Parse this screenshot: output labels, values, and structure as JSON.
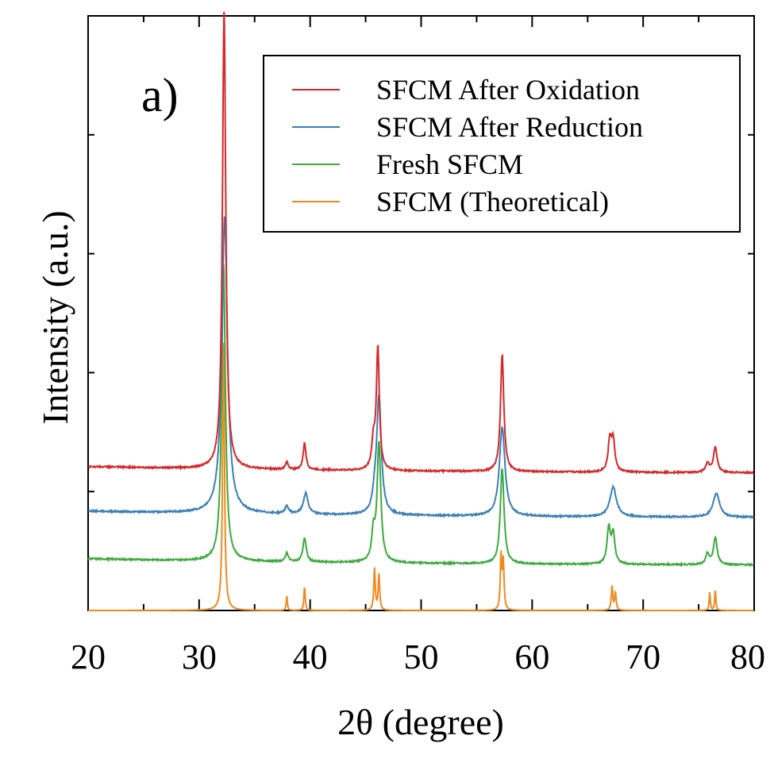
{
  "chart_data": {
    "type": "line",
    "panel_label": "a)",
    "xlabel": "2θ (degree)",
    "ylabel": "Intensity (a.u.)",
    "xlim": [
      20,
      80
    ],
    "ylim": [
      0,
      1.0
    ],
    "xticks": [
      20,
      30,
      40,
      50,
      60,
      70,
      80
    ],
    "xticklabels": [
      "20",
      "30",
      "40",
      "50",
      "60",
      "70",
      "80"
    ],
    "grid": false,
    "legend": {
      "position": "top-right"
    },
    "series": [
      {
        "name": "SFCM After Oxidation",
        "color": "#d62728",
        "baseline": 0.23,
        "peaks": [
          [
            32.25,
            0.77,
            0.18
          ],
          [
            37.9,
            0.012,
            0.15
          ],
          [
            39.5,
            0.045,
            0.15
          ],
          [
            45.7,
            0.045,
            0.18
          ],
          [
            46.1,
            0.205,
            0.16
          ],
          [
            57.3,
            0.197,
            0.18
          ],
          [
            67.0,
            0.052,
            0.18
          ],
          [
            67.3,
            0.05,
            0.18
          ],
          [
            75.8,
            0.015,
            0.2
          ],
          [
            76.5,
            0.042,
            0.2
          ]
        ]
      },
      {
        "name": "SFCM After Reduction",
        "color": "#3a7fb6",
        "baseline": 0.155,
        "peaks": [
          [
            32.3,
            0.5,
            0.3
          ],
          [
            37.9,
            0.012,
            0.2
          ],
          [
            39.6,
            0.035,
            0.25
          ],
          [
            45.8,
            0.02,
            0.2
          ],
          [
            46.2,
            0.2,
            0.25
          ],
          [
            57.3,
            0.15,
            0.3
          ],
          [
            67.3,
            0.05,
            0.35
          ],
          [
            76.6,
            0.04,
            0.35
          ]
        ]
      },
      {
        "name": "Fresh SFCM",
        "color": "#3daa3d",
        "baseline": 0.075,
        "peaks": [
          [
            32.2,
            0.5,
            0.2
          ],
          [
            37.9,
            0.015,
            0.15
          ],
          [
            39.5,
            0.04,
            0.18
          ],
          [
            45.7,
            0.045,
            0.18
          ],
          [
            46.2,
            0.2,
            0.2
          ],
          [
            57.3,
            0.16,
            0.2
          ],
          [
            66.9,
            0.06,
            0.18
          ],
          [
            67.3,
            0.05,
            0.18
          ],
          [
            75.8,
            0.018,
            0.18
          ],
          [
            76.5,
            0.045,
            0.2
          ]
        ]
      },
      {
        "name": "SFCM (Theoretical)",
        "color": "#f08a1e",
        "baseline": 0.0,
        "peaks": [
          [
            32.2,
            0.45,
            0.1
          ],
          [
            37.9,
            0.025,
            0.06
          ],
          [
            39.5,
            0.04,
            0.07
          ],
          [
            45.8,
            0.07,
            0.08
          ],
          [
            46.2,
            0.06,
            0.08
          ],
          [
            57.2,
            0.09,
            0.08
          ],
          [
            57.4,
            0.08,
            0.08
          ],
          [
            67.2,
            0.04,
            0.08
          ],
          [
            67.5,
            0.03,
            0.08
          ],
          [
            76.0,
            0.03,
            0.06
          ],
          [
            76.5,
            0.035,
            0.06
          ]
        ]
      }
    ]
  }
}
